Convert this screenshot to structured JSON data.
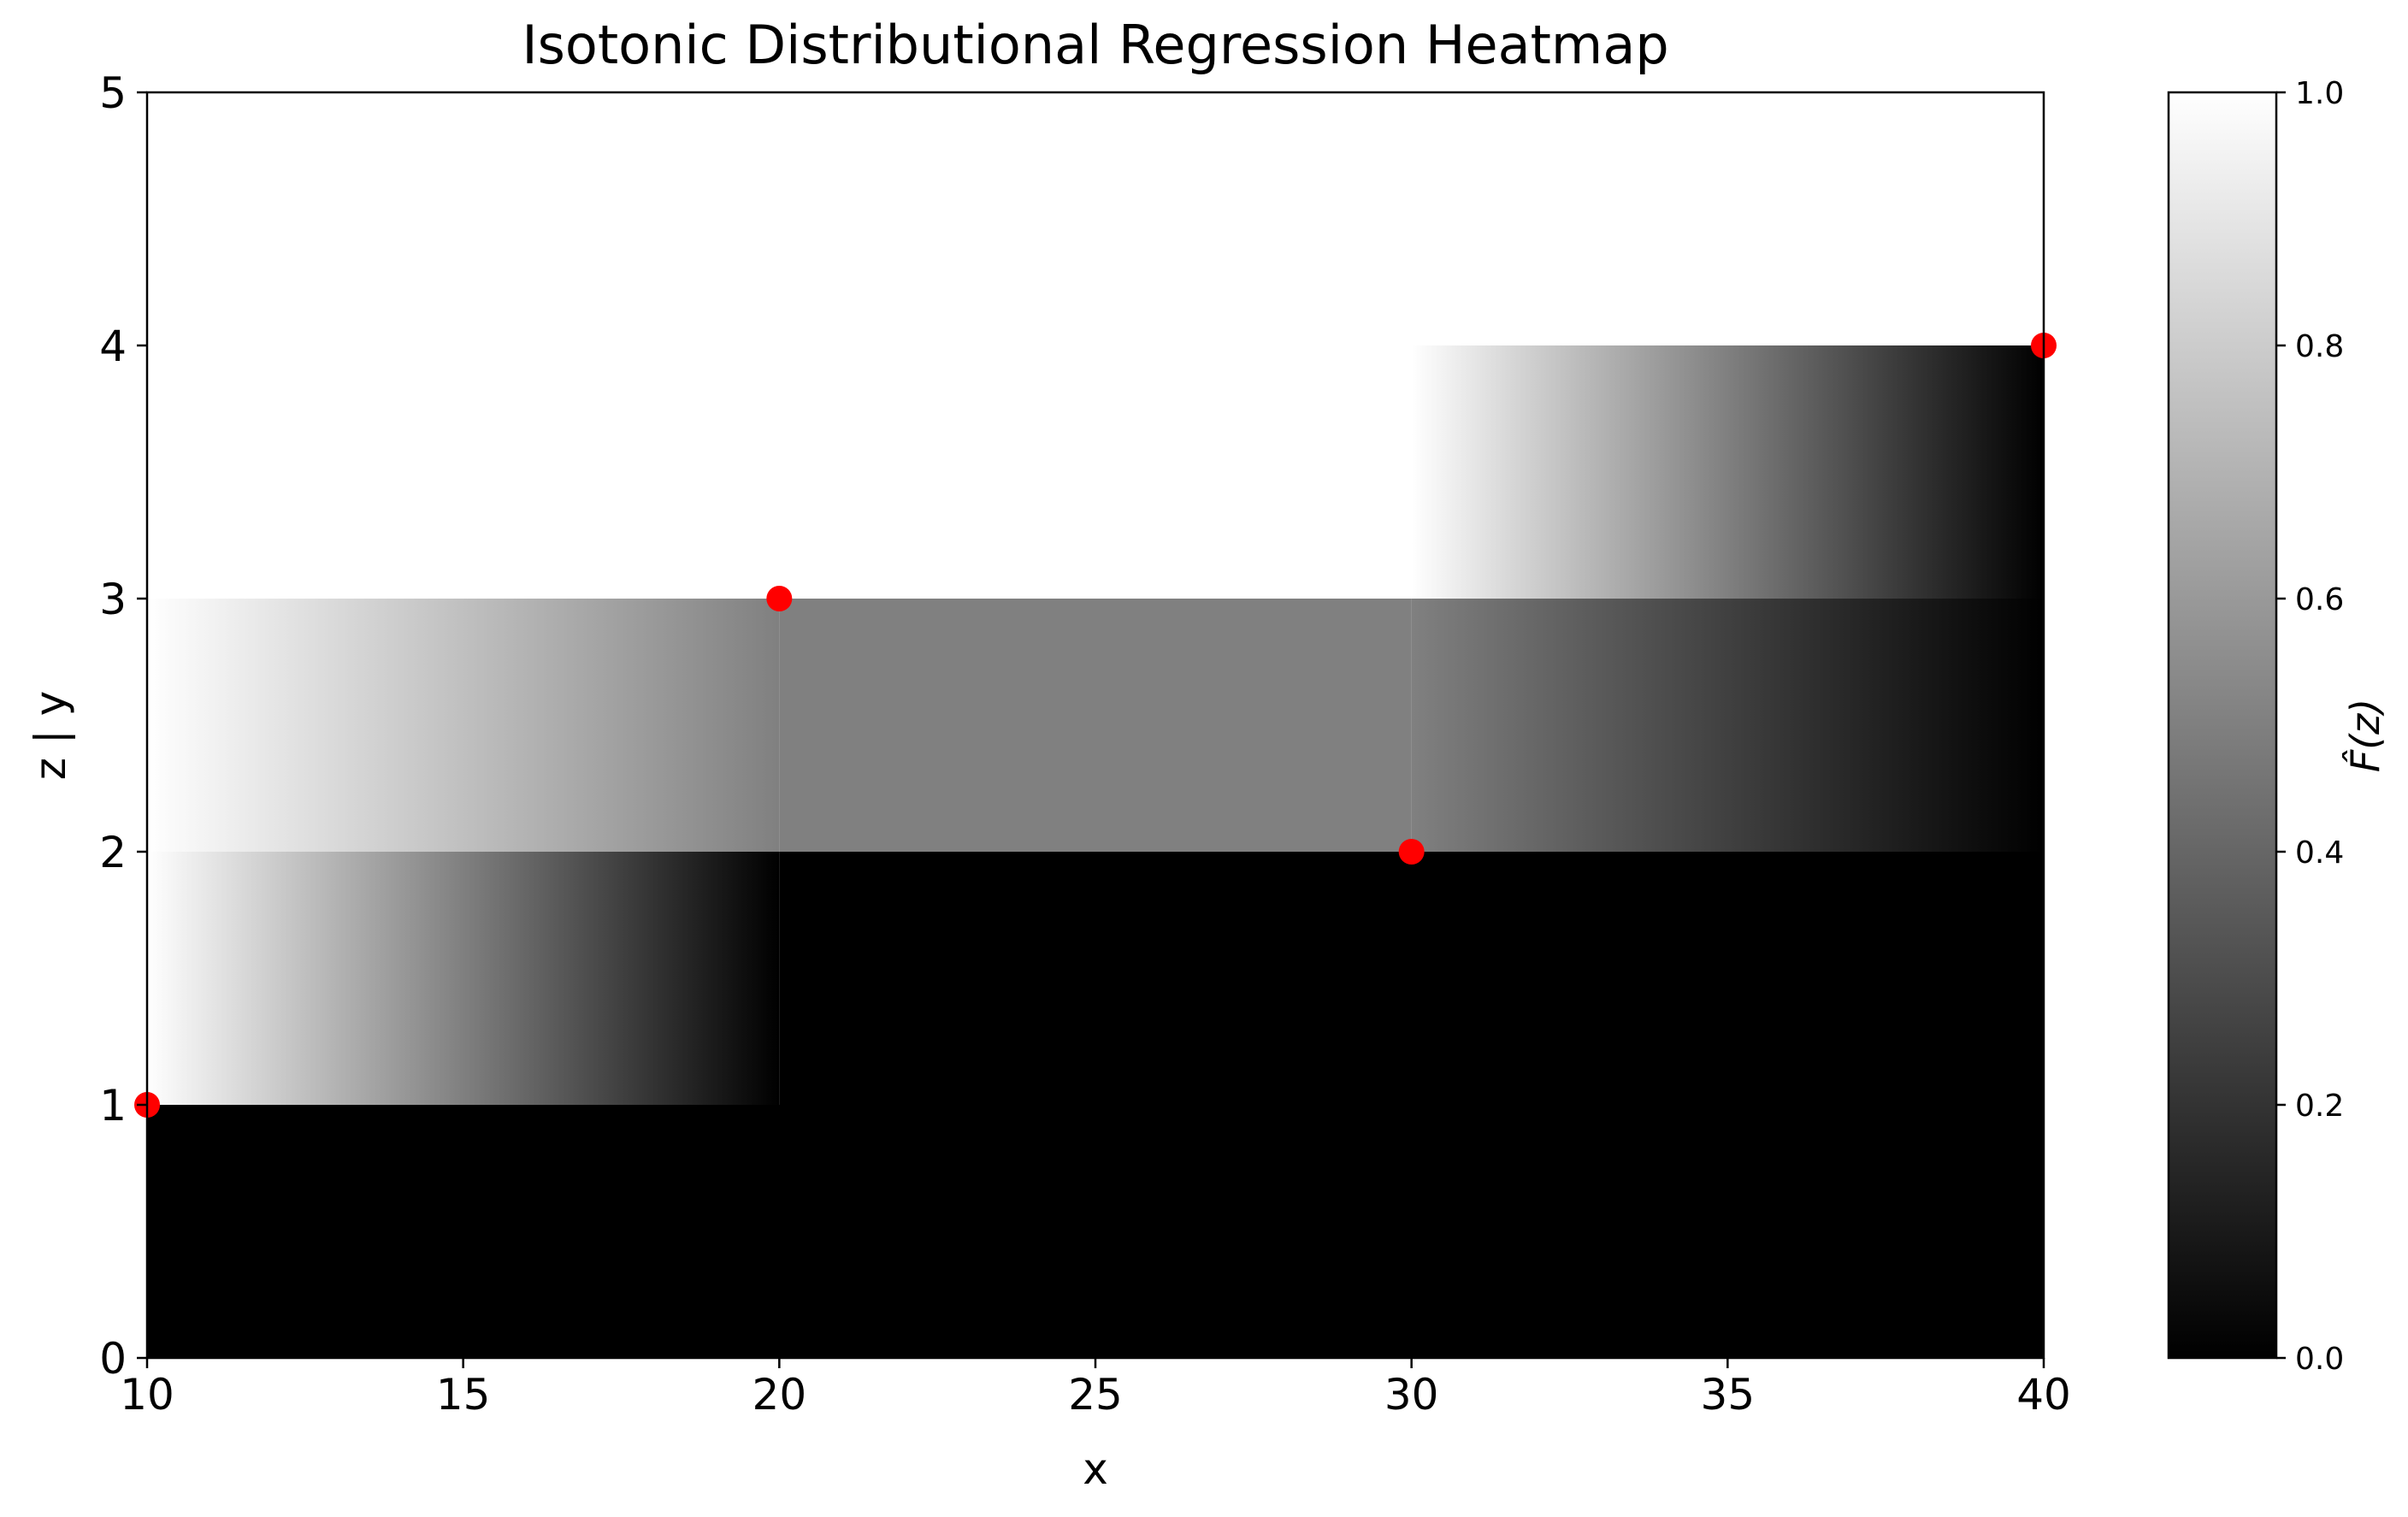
{
  "chart_data": {
    "type": "heatmap",
    "title": "Isotonic Distributional Regression Heatmap",
    "xlabel": "x",
    "ylabel": "z | y",
    "xlim": [
      10,
      40
    ],
    "ylim": [
      0,
      5
    ],
    "x_ticks": [
      10,
      15,
      20,
      25,
      30,
      35,
      40
    ],
    "y_ticks": [
      0,
      1,
      2,
      3,
      4,
      5
    ],
    "colormap": "gray",
    "colorbar": {
      "label": "F̂(z)",
      "range": [
        0.0,
        1.0
      ],
      "ticks": [
        "0.0",
        "0.2",
        "0.4",
        "0.6",
        "0.8",
        "1.0"
      ]
    },
    "grid": false,
    "cells": [
      {
        "z_range": [
          0,
          1
        ],
        "x_range": [
          10,
          40
        ],
        "value_start": 0.0,
        "value_end": 0.0
      },
      {
        "z_range": [
          1,
          2
        ],
        "x_range": [
          10,
          20
        ],
        "value_start": 1.0,
        "value_end": 0.0
      },
      {
        "z_range": [
          1,
          2
        ],
        "x_range": [
          20,
          40
        ],
        "value_start": 0.0,
        "value_end": 0.0
      },
      {
        "z_range": [
          2,
          3
        ],
        "x_range": [
          10,
          20
        ],
        "value_start": 1.0,
        "value_end": 0.5
      },
      {
        "z_range": [
          2,
          3
        ],
        "x_range": [
          20,
          30
        ],
        "value_start": 0.5,
        "value_end": 0.5
      },
      {
        "z_range": [
          2,
          3
        ],
        "x_range": [
          30,
          40
        ],
        "value_start": 0.5,
        "value_end": 0.0
      },
      {
        "z_range": [
          3,
          4
        ],
        "x_range": [
          10,
          30
        ],
        "value_start": 1.0,
        "value_end": 1.0
      },
      {
        "z_range": [
          3,
          4
        ],
        "x_range": [
          30,
          40
        ],
        "value_start": 1.0,
        "value_end": 0.0
      },
      {
        "z_range": [
          4,
          5
        ],
        "x_range": [
          10,
          40
        ],
        "value_start": 1.0,
        "value_end": 1.0
      }
    ],
    "points": {
      "color": "#ff0000",
      "x": [
        10,
        20,
        30,
        40
      ],
      "y": [
        1,
        3,
        2,
        4
      ]
    }
  }
}
